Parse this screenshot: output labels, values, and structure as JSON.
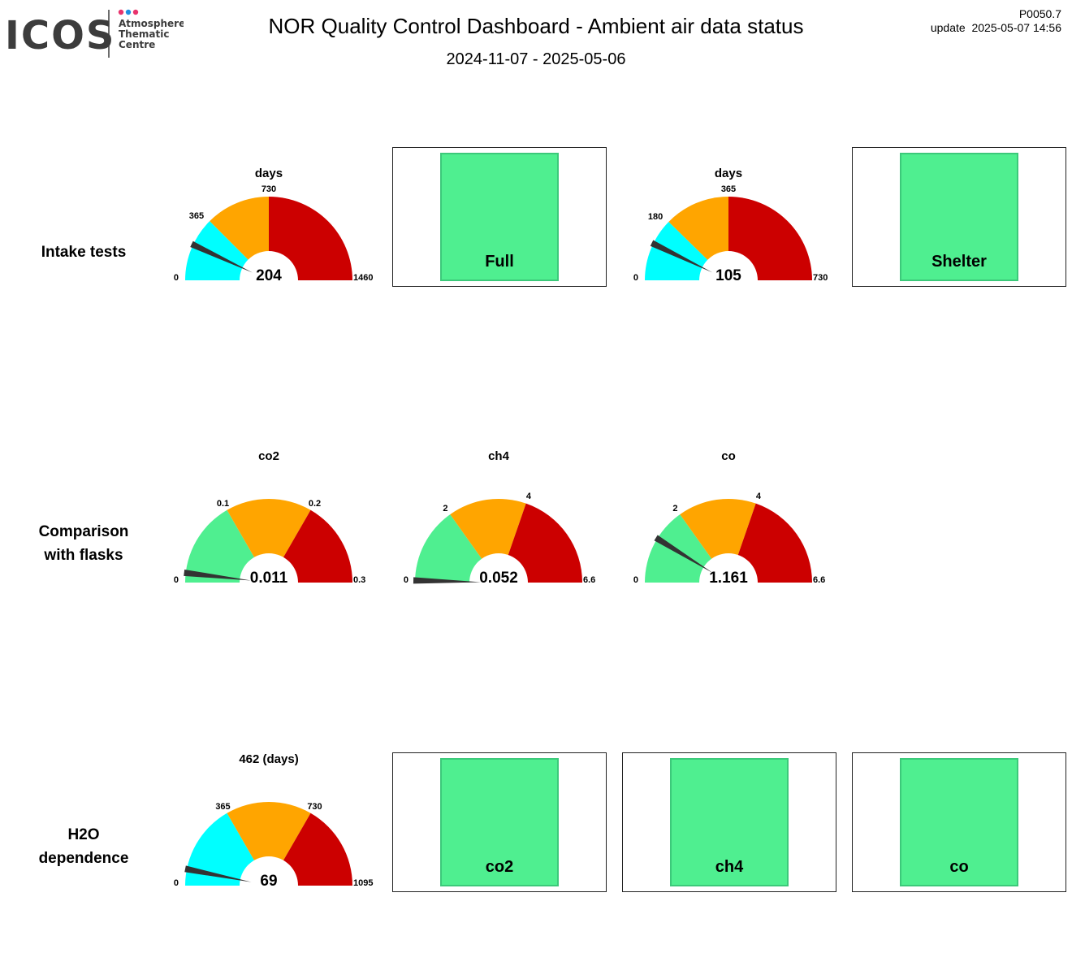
{
  "header": {
    "logo_main": "ICOS",
    "logo_lines": [
      "Atmosphere",
      "Thematic",
      "Centre"
    ],
    "title": "NOR  Quality Control Dashboard - Ambient air data status",
    "period": "2024-11-07 - 2025-05-06",
    "version": "P0050.7",
    "update": "update  2025-05-07 14:56"
  },
  "colors": {
    "cyan": "#00ffff",
    "orange": "#ffa500",
    "red": "#cc0000",
    "green": "#4fef90",
    "needle": "#333333",
    "logo_dot_1": "#e8336d",
    "logo_dot_2": "#1f8fe0",
    "logo_dot_3": "#e8336d"
  },
  "rows": [
    {
      "label_lines": [
        "Intake tests"
      ]
    },
    {
      "label_lines": [
        "Comparison",
        "with flasks"
      ]
    },
    {
      "label_lines": [
        "H2O",
        "dependence"
      ]
    }
  ],
  "status_panels": [
    {
      "label": "Full",
      "status": "ok"
    },
    {
      "label": "Shelter",
      "status": "ok"
    },
    {
      "label": "co2",
      "status": "ok"
    },
    {
      "label": "ch4",
      "status": "ok"
    },
    {
      "label": "co",
      "status": "ok"
    }
  ],
  "chart_data": [
    {
      "type": "gauge",
      "title": "days",
      "min": 0,
      "max": 1460,
      "bands": [
        {
          "from": 0,
          "to": 365,
          "color": "cyan"
        },
        {
          "from": 365,
          "to": 730,
          "color": "orange"
        },
        {
          "from": 730,
          "to": 1460,
          "color": "red"
        }
      ],
      "ticks": [
        0,
        365,
        730,
        1460
      ],
      "value": 204,
      "value_label": "204"
    },
    {
      "type": "gauge",
      "title": "days",
      "min": 0,
      "max": 730,
      "bands": [
        {
          "from": 0,
          "to": 180,
          "color": "cyan"
        },
        {
          "from": 180,
          "to": 365,
          "color": "orange"
        },
        {
          "from": 365,
          "to": 730,
          "color": "red"
        }
      ],
      "ticks": [
        0,
        180,
        365,
        730
      ],
      "value": 105,
      "value_label": "105"
    },
    {
      "type": "gauge",
      "title": "co2",
      "min": 0,
      "max": 0.3,
      "bands": [
        {
          "from": 0,
          "to": 0.1,
          "color": "green"
        },
        {
          "from": 0.1,
          "to": 0.2,
          "color": "orange"
        },
        {
          "from": 0.2,
          "to": 0.3,
          "color": "red"
        }
      ],
      "ticks": [
        0,
        0.1,
        0.2,
        0.3
      ],
      "value": 0.011,
      "value_label": "0.011"
    },
    {
      "type": "gauge",
      "title": "ch4",
      "min": 0,
      "max": 6.6,
      "bands": [
        {
          "from": 0,
          "to": 2,
          "color": "green"
        },
        {
          "from": 2,
          "to": 4,
          "color": "orange"
        },
        {
          "from": 4,
          "to": 6.6,
          "color": "red"
        }
      ],
      "ticks": [
        0,
        2,
        4,
        6.6
      ],
      "value": 0.052,
      "value_label": "0.052"
    },
    {
      "type": "gauge",
      "title": "co",
      "min": 0,
      "max": 6.6,
      "bands": [
        {
          "from": 0,
          "to": 2,
          "color": "green"
        },
        {
          "from": 2,
          "to": 4,
          "color": "orange"
        },
        {
          "from": 4,
          "to": 6.6,
          "color": "red"
        }
      ],
      "ticks": [
        0,
        2,
        4,
        6.6
      ],
      "value": 1.161,
      "value_label": "1.161"
    },
    {
      "type": "gauge",
      "title": "462 (days)",
      "min": 0,
      "max": 1095,
      "bands": [
        {
          "from": 0,
          "to": 365,
          "color": "cyan"
        },
        {
          "from": 365,
          "to": 730,
          "color": "orange"
        },
        {
          "from": 730,
          "to": 1095,
          "color": "red"
        }
      ],
      "ticks": [
        0,
        365,
        730,
        1095
      ],
      "value": 69,
      "value_label": "69"
    }
  ]
}
